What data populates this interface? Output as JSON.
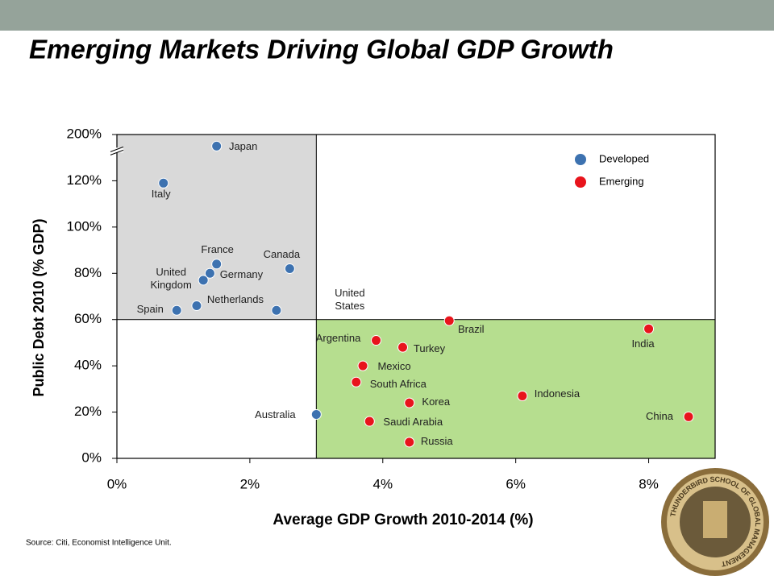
{
  "slide": {
    "title": "Emerging Markets Driving Global GDP Growth",
    "source": "Source:  Citi, Economist Intelligence Unit.",
    "logo_text": "THUNDERBIRD SCHOOL OF GLOBAL MANAGEMENT"
  },
  "chart_data": {
    "type": "scatter",
    "x_label": "Average GDP Growth 2010-2014 (%)",
    "y_label": "Public Debt 2010 (% GDP)",
    "xlim": [
      0,
      9
    ],
    "ylim": [
      0,
      200
    ],
    "y_break": [
      130,
      190
    ],
    "xticks": [
      {
        "value": 0,
        "label": "0%"
      },
      {
        "value": 2,
        "label": "2%"
      },
      {
        "value": 4,
        "label": "4%"
      },
      {
        "value": 6,
        "label": "6%"
      },
      {
        "value": 8,
        "label": "8%"
      }
    ],
    "yticks": [
      {
        "value": 0,
        "label": "0%"
      },
      {
        "value": 20,
        "label": "20%"
      },
      {
        "value": 40,
        "label": "40%"
      },
      {
        "value": 60,
        "label": "60%"
      },
      {
        "value": 80,
        "label": "80%"
      },
      {
        "value": 100,
        "label": "100%"
      },
      {
        "value": 120,
        "label": "120%"
      },
      {
        "value": 200,
        "label": "200%"
      }
    ],
    "regions": [
      {
        "x": [
          0,
          3
        ],
        "y": [
          60,
          200
        ],
        "color": "#d9d9d9"
      },
      {
        "x": [
          3,
          9
        ],
        "y": [
          0,
          60
        ],
        "color": "#b6de8f"
      }
    ],
    "legend": "upper right",
    "series": [
      {
        "name": "Developed",
        "color": "#3d72b0",
        "labels": [
          "Japan",
          "Italy",
          "France",
          "Canada",
          "Germany",
          "United Kingdom",
          "Netherlands",
          "Spain",
          "United States",
          "Australia"
        ],
        "x": [
          1.5,
          0.7,
          1.5,
          2.6,
          1.4,
          1.3,
          1.2,
          0.9,
          2.4,
          3.0
        ],
        "values": [
          195,
          119,
          84,
          82,
          80,
          77,
          66,
          64,
          64,
          19
        ]
      },
      {
        "name": "Emerging",
        "color": "#e8141c",
        "labels": [
          "Brazil",
          "India",
          "Argentina",
          "Turkey",
          "Mexico",
          "South Africa",
          "Korea",
          "Indonesia",
          "China",
          "Saudi Arabia",
          "Russia"
        ],
        "x": [
          5.0,
          8.0,
          3.9,
          4.3,
          3.7,
          3.6,
          4.4,
          6.1,
          8.6,
          3.8,
          4.4
        ],
        "values": [
          59.5,
          56,
          51,
          48,
          40,
          33,
          24,
          27,
          18,
          16,
          7
        ]
      }
    ]
  }
}
